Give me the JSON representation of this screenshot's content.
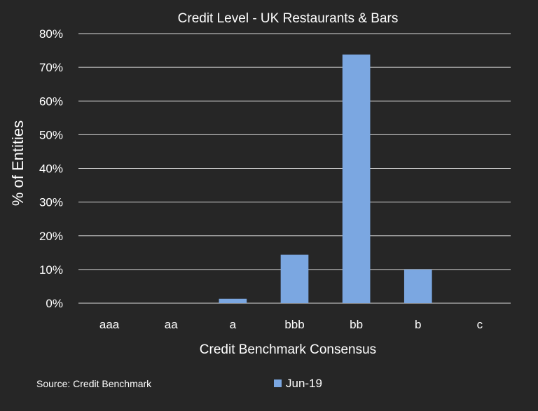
{
  "chart_data": {
    "type": "bar",
    "title": "Credit Level - UK Restaurants & Bars",
    "xlabel": "Credit Benchmark Consensus",
    "ylabel": "% of Entities",
    "categories": [
      "aaa",
      "aa",
      "a",
      "bbb",
      "bb",
      "b",
      "c"
    ],
    "series": [
      {
        "name": "Jun-19",
        "values": [
          0,
          0,
          1.3,
          14.4,
          73.8,
          10.0,
          0
        ],
        "color": "#7ba7e1"
      }
    ],
    "ylim": [
      0,
      80
    ],
    "yticks": [
      0,
      10,
      20,
      30,
      40,
      50,
      60,
      70,
      80
    ],
    "ytick_labels": [
      "0%",
      "10%",
      "20%",
      "30%",
      "40%",
      "50%",
      "60%",
      "70%",
      "80%"
    ],
    "grid": true,
    "legend_position": "bottom-center"
  },
  "source": "Source: Credit Benchmark",
  "colors": {
    "background": "#262626",
    "text": "#ffffff",
    "grid": "#d9d9d9"
  }
}
